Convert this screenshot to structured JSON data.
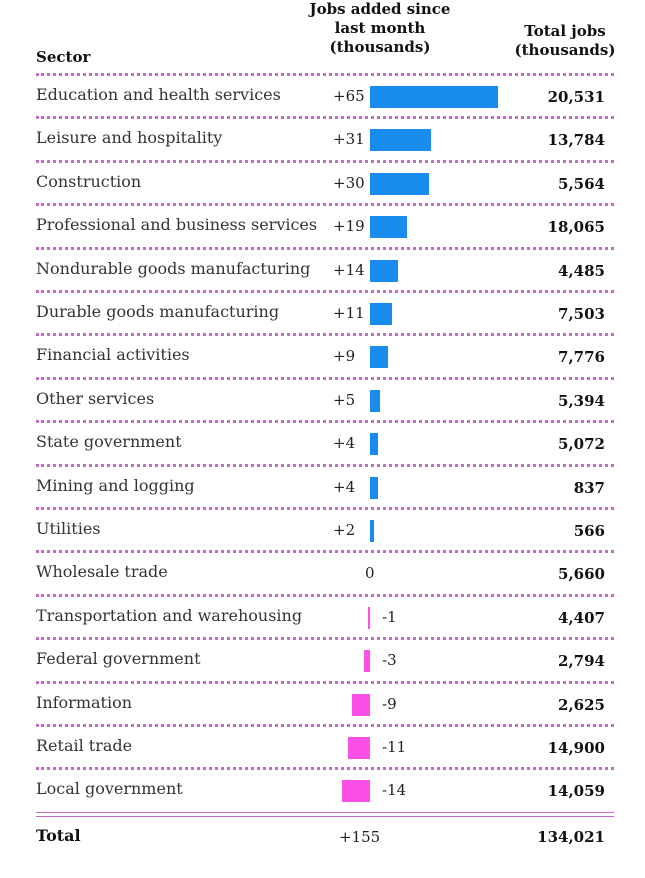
{
  "chart_data": {
    "type": "bar",
    "headers": {
      "sector": "Sector",
      "added": "Jobs added since last month (thousands)",
      "added_lines": [
        "Jobs added since",
        "last month",
        "(thousands)"
      ],
      "total_lines": [
        "Total jobs",
        "(thousands)"
      ]
    },
    "rows": [
      {
        "sector": "Education and health services",
        "change": 65,
        "change_label": "+65",
        "total": "20,531"
      },
      {
        "sector": "Leisure and hospitality",
        "change": 31,
        "change_label": "+31",
        "total": "13,784"
      },
      {
        "sector": "Construction",
        "change": 30,
        "change_label": "+30",
        "total": "5,564"
      },
      {
        "sector": "Professional and business services",
        "change": 19,
        "change_label": "+19",
        "total": "18,065"
      },
      {
        "sector": "Nondurable goods manufacturing",
        "change": 14,
        "change_label": "+14",
        "total": "4,485"
      },
      {
        "sector": "Durable goods manufacturing",
        "change": 11,
        "change_label": "+11",
        "total": "7,503"
      },
      {
        "sector": "Financial activities",
        "change": 9,
        "change_label": "+9",
        "total": "7,776"
      },
      {
        "sector": "Other services",
        "change": 5,
        "change_label": "+5",
        "total": "5,394"
      },
      {
        "sector": "State government",
        "change": 4,
        "change_label": "+4",
        "total": "5,072"
      },
      {
        "sector": "Mining and logging",
        "change": 4,
        "change_label": "+4",
        "total": "837"
      },
      {
        "sector": "Utilities",
        "change": 2,
        "change_label": "+2",
        "total": "566"
      },
      {
        "sector": "Wholesale trade",
        "change": 0,
        "change_label": "0",
        "total": "5,660"
      },
      {
        "sector": "Transportation and warehousing",
        "change": -1,
        "change_label": "-1",
        "total": "4,407"
      },
      {
        "sector": "Federal government",
        "change": -3,
        "change_label": "-3",
        "total": "2,794"
      },
      {
        "sector": "Information",
        "change": -9,
        "change_label": "-9",
        "total": "2,625"
      },
      {
        "sector": "Retail trade",
        "change": -11,
        "change_label": "-11",
        "total": "14,900"
      },
      {
        "sector": "Local government",
        "change": -14,
        "change_label": "-14",
        "total": "14,059"
      }
    ],
    "total": {
      "label": "Total",
      "change_label": "+155",
      "total": "134,021"
    },
    "colors": {
      "positive": "#1a8cf0",
      "negative": "#fb4fe6",
      "separator": "#c56ac8"
    }
  }
}
